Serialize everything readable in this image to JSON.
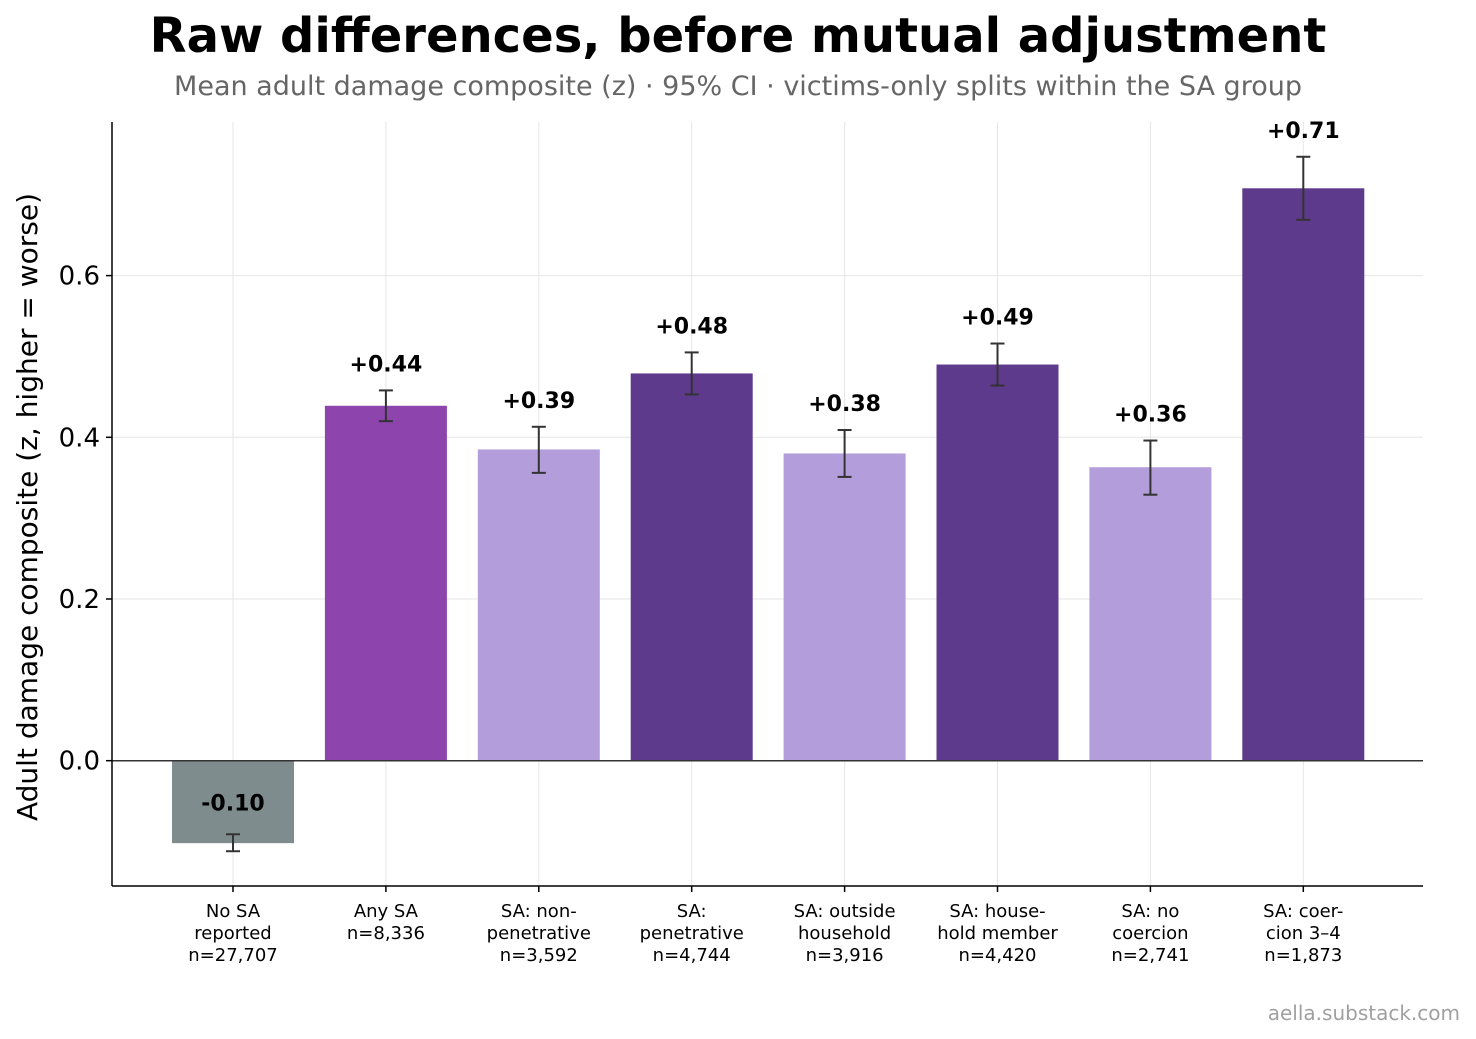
{
  "title": "Raw differences, before mutual adjustment",
  "subtitle": "Mean adult damage composite (z) · 95% CI · victims-only splits within the SA group",
  "watermark": "aella.substack.com",
  "chart_data": {
    "type": "bar",
    "title": "Raw differences, before mutual adjustment",
    "subtitle": "Mean adult damage composite (z) · 95% CI · victims-only splits within the SA group",
    "xlabel": "",
    "ylabel": "Adult damage composite (z, higher = worse)",
    "ylim": [
      -0.155,
      0.79
    ],
    "yticks": [
      0.0,
      0.2,
      0.4,
      0.6
    ],
    "ytick_labels": [
      "0.0",
      "0.2",
      "0.4",
      "0.6"
    ],
    "grid": true,
    "categories": [
      [
        "No SA",
        "reported",
        "n=27,707"
      ],
      [
        "Any SA",
        "n=8,336"
      ],
      [
        "SA: non-",
        "penetrative",
        "n=3,592"
      ],
      [
        "SA:",
        "penetrative",
        "n=4,744"
      ],
      [
        "SA: outside",
        "household",
        "n=3,916"
      ],
      [
        "SA: house-",
        "hold member",
        "n=4,420"
      ],
      [
        "SA: no",
        "coercion",
        "n=2,741"
      ],
      [
        "SA: coer-",
        "cion 3–4",
        "n=1,873"
      ]
    ],
    "values": [
      -0.102,
      0.439,
      0.385,
      0.479,
      0.38,
      0.49,
      0.363,
      0.708
    ],
    "ci_low": [
      -0.112,
      0.42,
      0.356,
      0.453,
      0.351,
      0.464,
      0.329,
      0.669
    ],
    "ci_high": [
      -0.091,
      0.458,
      0.413,
      0.505,
      0.409,
      0.516,
      0.396,
      0.747
    ],
    "value_labels": [
      "-0.10",
      "+0.44",
      "+0.39",
      "+0.48",
      "+0.38",
      "+0.49",
      "+0.36",
      "+0.71"
    ],
    "colors": [
      "#7f8c8d",
      "#8e44ad",
      "#b39ddb",
      "#5e3a8c",
      "#b39ddb",
      "#5e3a8c",
      "#b39ddb",
      "#5e3a8c"
    ]
  }
}
